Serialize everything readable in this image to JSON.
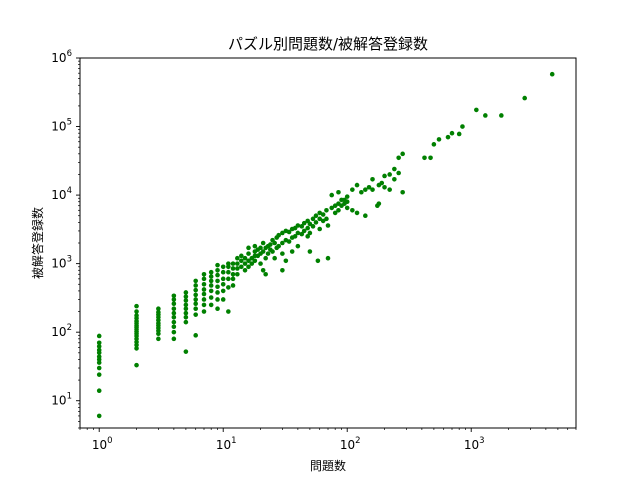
{
  "chart_data": {
    "type": "scatter",
    "title": "パズル別問題数/被解答登録数",
    "xlabel": "問題数",
    "ylabel": "被解答登録数",
    "xscale": "log",
    "yscale": "log",
    "xlim": [
      0.7,
      7000
    ],
    "ylim": [
      4,
      1000000
    ],
    "grid": false,
    "legend": "none",
    "point_color": "#008000",
    "x_ticks": [
      {
        "value": 1,
        "base": "10",
        "exp": "0"
      },
      {
        "value": 10,
        "base": "10",
        "exp": "1"
      },
      {
        "value": 100,
        "base": "10",
        "exp": "2"
      },
      {
        "value": 1000,
        "base": "10",
        "exp": "3"
      }
    ],
    "y_ticks": [
      {
        "value": 10,
        "base": "10",
        "exp": "1"
      },
      {
        "value": 100,
        "base": "10",
        "exp": "2"
      },
      {
        "value": 1000,
        "base": "10",
        "exp": "3"
      },
      {
        "value": 10000,
        "base": "10",
        "exp": "4"
      },
      {
        "value": 100000,
        "base": "10",
        "exp": "5"
      },
      {
        "value": 1000000,
        "base": "10",
        "exp": "6"
      }
    ],
    "points": [
      [
        1,
        6
      ],
      [
        1,
        14
      ],
      [
        1,
        24
      ],
      [
        1,
        30
      ],
      [
        1,
        36
      ],
      [
        1,
        40
      ],
      [
        1,
        44
      ],
      [
        1,
        50
      ],
      [
        1,
        55
      ],
      [
        1,
        62
      ],
      [
        1,
        70
      ],
      [
        1,
        88
      ],
      [
        2,
        33
      ],
      [
        2,
        58
      ],
      [
        2,
        65
      ],
      [
        2,
        72
      ],
      [
        2,
        80
      ],
      [
        2,
        88
      ],
      [
        2,
        95
      ],
      [
        2,
        102
      ],
      [
        2,
        110
      ],
      [
        2,
        118
      ],
      [
        2,
        125
      ],
      [
        2,
        135
      ],
      [
        2,
        145
      ],
      [
        2,
        160
      ],
      [
        2,
        175
      ],
      [
        2,
        200
      ],
      [
        2,
        240
      ],
      [
        3,
        80
      ],
      [
        3,
        95
      ],
      [
        3,
        105
      ],
      [
        3,
        115
      ],
      [
        3,
        125
      ],
      [
        3,
        135
      ],
      [
        3,
        150
      ],
      [
        3,
        165
      ],
      [
        3,
        180
      ],
      [
        3,
        195
      ],
      [
        3,
        220
      ],
      [
        4,
        80
      ],
      [
        4,
        100
      ],
      [
        4,
        120
      ],
      [
        4,
        140
      ],
      [
        4,
        165
      ],
      [
        4,
        190
      ],
      [
        4,
        220
      ],
      [
        4,
        260
      ],
      [
        4,
        300
      ],
      [
        4,
        340
      ],
      [
        5,
        52
      ],
      [
        5,
        140
      ],
      [
        5,
        165
      ],
      [
        5,
        190
      ],
      [
        5,
        220
      ],
      [
        5,
        250
      ],
      [
        5,
        290
      ],
      [
        5,
        330
      ],
      [
        5,
        380
      ],
      [
        6,
        90
      ],
      [
        6,
        180
      ],
      [
        6,
        220
      ],
      [
        6,
        260
      ],
      [
        6,
        300
      ],
      [
        6,
        350
      ],
      [
        6,
        410
      ],
      [
        6,
        480
      ],
      [
        6,
        560
      ],
      [
        7,
        200
      ],
      [
        7,
        250
      ],
      [
        7,
        300
      ],
      [
        7,
        360
      ],
      [
        7,
        420
      ],
      [
        7,
        500
      ],
      [
        7,
        600
      ],
      [
        7,
        700
      ],
      [
        8,
        250
      ],
      [
        8,
        320
      ],
      [
        8,
        400
      ],
      [
        8,
        480
      ],
      [
        8,
        560
      ],
      [
        8,
        650
      ],
      [
        8,
        750
      ],
      [
        9,
        220
      ],
      [
        9,
        300
      ],
      [
        9,
        380
      ],
      [
        9,
        460
      ],
      [
        9,
        560
      ],
      [
        9,
        680
      ],
      [
        9,
        800
      ],
      [
        9,
        950
      ],
      [
        10,
        300
      ],
      [
        10,
        400
      ],
      [
        10,
        500
      ],
      [
        10,
        600
      ],
      [
        10,
        750
      ],
      [
        10,
        900
      ],
      [
        11,
        200
      ],
      [
        11,
        450
      ],
      [
        11,
        600
      ],
      [
        11,
        750
      ],
      [
        11,
        900
      ],
      [
        11,
        1000
      ],
      [
        12,
        480
      ],
      [
        12,
        600
      ],
      [
        12,
        700
      ],
      [
        12,
        850
      ],
      [
        12,
        1000
      ],
      [
        13,
        700
      ],
      [
        13,
        850
      ],
      [
        13,
        1000
      ],
      [
        13,
        1200
      ],
      [
        14,
        900
      ],
      [
        14,
        1100
      ],
      [
        14,
        1300
      ],
      [
        15,
        800
      ],
      [
        15,
        1000
      ],
      [
        15,
        1200
      ],
      [
        16,
        900
      ],
      [
        16,
        1100
      ],
      [
        16,
        1400
      ],
      [
        16,
        1700
      ],
      [
        17,
        1000
      ],
      [
        17,
        1200
      ],
      [
        18,
        1100
      ],
      [
        18,
        1300
      ],
      [
        18,
        1500
      ],
      [
        18,
        1800
      ],
      [
        19,
        1300
      ],
      [
        19,
        1600
      ],
      [
        20,
        1000
      ],
      [
        20,
        1400
      ],
      [
        20,
        1700
      ],
      [
        21,
        800
      ],
      [
        21,
        1500
      ],
      [
        21,
        2000
      ],
      [
        22,
        700
      ],
      [
        22,
        1200
      ],
      [
        22,
        1700
      ],
      [
        23,
        1400
      ],
      [
        23,
        1800
      ],
      [
        24,
        1600
      ],
      [
        24,
        1900
      ],
      [
        25,
        1500
      ],
      [
        25,
        2200
      ],
      [
        26,
        1200
      ],
      [
        26,
        2000
      ],
      [
        27,
        1700
      ],
      [
        27,
        2400
      ],
      [
        28,
        1800
      ],
      [
        28,
        2600
      ],
      [
        30,
        800
      ],
      [
        30,
        1400
      ],
      [
        30,
        2000
      ],
      [
        30,
        2800
      ],
      [
        32,
        1100
      ],
      [
        32,
        2200
      ],
      [
        32,
        3000
      ],
      [
        34,
        2100
      ],
      [
        34,
        2900
      ],
      [
        36,
        1500
      ],
      [
        36,
        2400
      ],
      [
        36,
        3200
      ],
      [
        38,
        2500
      ],
      [
        38,
        3300
      ],
      [
        40,
        1800
      ],
      [
        40,
        2800
      ],
      [
        40,
        3600
      ],
      [
        43,
        2700
      ],
      [
        43,
        3500
      ],
      [
        45,
        3000
      ],
      [
        45,
        3900
      ],
      [
        48,
        2500
      ],
      [
        48,
        3300
      ],
      [
        48,
        4200
      ],
      [
        50,
        1500
      ],
      [
        50,
        2800
      ],
      [
        50,
        3800
      ],
      [
        53,
        3500
      ],
      [
        53,
        4500
      ],
      [
        56,
        4000
      ],
      [
        56,
        5000
      ],
      [
        58,
        1100
      ],
      [
        60,
        3200
      ],
      [
        60,
        4500
      ],
      [
        60,
        5500
      ],
      [
        64,
        4200
      ],
      [
        64,
        5200
      ],
      [
        68,
        4500
      ],
      [
        68,
        6000
      ],
      [
        70,
        1200
      ],
      [
        70,
        3600
      ],
      [
        75,
        6500
      ],
      [
        75,
        10000
      ],
      [
        80,
        5500
      ],
      [
        80,
        7000
      ],
      [
        85,
        6000
      ],
      [
        85,
        7500
      ],
      [
        85,
        11000
      ],
      [
        90,
        7000
      ],
      [
        90,
        8500
      ],
      [
        95,
        7500
      ],
      [
        95,
        8500
      ],
      [
        100,
        6500
      ],
      [
        100,
        8000
      ],
      [
        100,
        9500
      ],
      [
        110,
        6000
      ],
      [
        110,
        12000
      ],
      [
        120,
        5500
      ],
      [
        120,
        14000
      ],
      [
        130,
        11000
      ],
      [
        140,
        5000
      ],
      [
        140,
        12000
      ],
      [
        150,
        13000
      ],
      [
        160,
        12000
      ],
      [
        160,
        17000
      ],
      [
        175,
        7000
      ],
      [
        180,
        7500
      ],
      [
        180,
        14000
      ],
      [
        190,
        15000
      ],
      [
        200,
        13000
      ],
      [
        200,
        19000
      ],
      [
        220,
        12000
      ],
      [
        220,
        20000
      ],
      [
        240,
        17000
      ],
      [
        240,
        24000
      ],
      [
        260,
        21000
      ],
      [
        260,
        35000
      ],
      [
        280,
        11000
      ],
      [
        280,
        40000
      ],
      [
        420,
        35000
      ],
      [
        470,
        35000
      ],
      [
        500,
        55000
      ],
      [
        550,
        65000
      ],
      [
        650,
        70000
      ],
      [
        700,
        80000
      ],
      [
        800,
        78000
      ],
      [
        850,
        100000
      ],
      [
        1100,
        175000
      ],
      [
        1300,
        145000
      ],
      [
        1750,
        145000
      ],
      [
        2700,
        260000
      ],
      [
        4500,
        580000
      ]
    ]
  }
}
